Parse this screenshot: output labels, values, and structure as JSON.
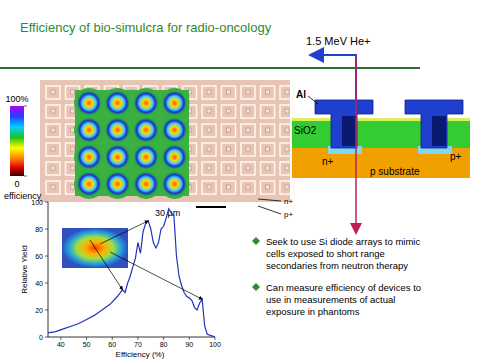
{
  "title": "Efficiency of bio-simulcra for radio-oncology",
  "beam_label": "1.5 MeV He+",
  "colorbar": {
    "range": [
      0,
      100
    ],
    "ticks": [
      {
        "value": 100,
        "label": "100%"
      },
      0
    ],
    "label": "efficiency"
  },
  "micrograph": {
    "scale_bar": "30 µm",
    "labels": [
      "n+",
      "p+"
    ]
  },
  "cross_section": {
    "labels": [
      "Al",
      "SiO2",
      "n+",
      "p+",
      "p substrate"
    ]
  },
  "bullets": [
    "Seek to use Si diode arrays to mimic cells exposed to short range secondaries from neutron therapy",
    "Can measure efficiency of devices to use in measurements of actual exposure in phantoms"
  ],
  "chart_data": {
    "type": "line",
    "xlabel": "Efficiency (%)",
    "ylabel": "Relative Yield",
    "color": "#2233bb",
    "x": [
      35,
      38,
      41,
      44,
      47,
      50,
      53,
      56,
      59,
      62,
      64,
      65,
      66,
      67,
      68,
      69,
      70,
      71,
      72,
      73,
      74,
      75,
      76,
      77,
      78,
      79,
      80,
      81,
      82,
      83,
      84,
      85,
      86,
      87,
      88,
      89,
      90,
      91,
      92,
      93,
      94,
      95,
      96,
      97,
      100
    ],
    "values": [
      3,
      4,
      6,
      8,
      10,
      13,
      16,
      20,
      24,
      30,
      35,
      33,
      40,
      45,
      52,
      58,
      70,
      62,
      78,
      84,
      86,
      80,
      70,
      66,
      70,
      80,
      82,
      88,
      95,
      92,
      90,
      60,
      45,
      38,
      33,
      30,
      29,
      27,
      22,
      20,
      25,
      28,
      8,
      2,
      0
    ],
    "xlim": [
      35,
      100
    ],
    "ylim": [
      0,
      100
    ],
    "xticks": [
      40,
      50,
      60,
      70,
      80,
      90,
      100
    ],
    "yticks": [
      0,
      20,
      40,
      60,
      80,
      100
    ]
  }
}
